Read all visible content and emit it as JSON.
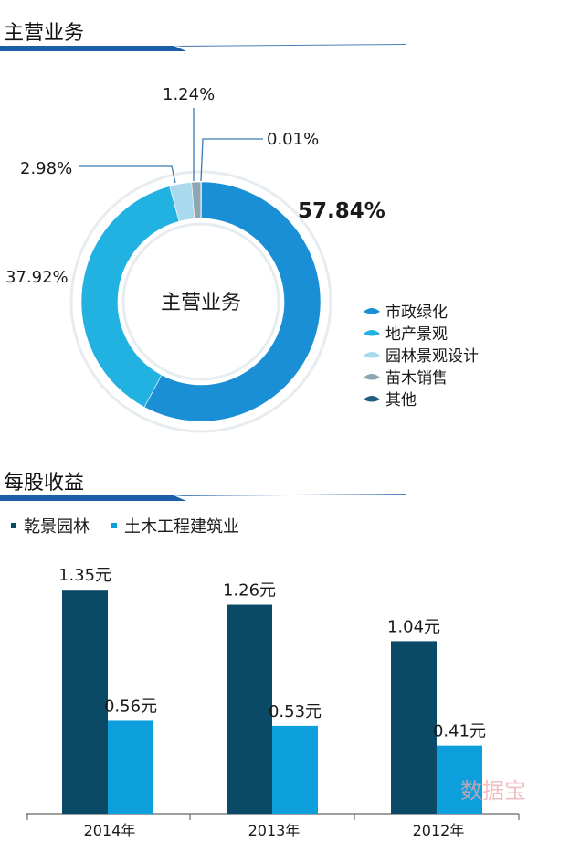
{
  "section1": {
    "title": "主营业务"
  },
  "section2": {
    "title": "每股收益"
  },
  "watermark": "数据宝",
  "chart_data": [
    {
      "type": "pie",
      "variant": "donut",
      "center_label": "主营业务",
      "slices": [
        {
          "label": "市政绿化",
          "value": 57.84,
          "value_label": "57.84%",
          "color": "#1b8fd6"
        },
        {
          "label": "地产景观",
          "value": 37.92,
          "value_label": "37.92%",
          "color": "#22b2e2"
        },
        {
          "label": "园林景观设计",
          "value": 2.98,
          "value_label": "2.98%",
          "color": "#a9d9ec"
        },
        {
          "label": "苗木销售",
          "value": 1.24,
          "value_label": "1.24%",
          "color": "#8ea6b2"
        },
        {
          "label": "其他",
          "value": 0.01,
          "value_label": "0.01%",
          "color": "#1e5f80"
        }
      ],
      "legend_position": "right"
    },
    {
      "type": "bar",
      "categories": [
        "2014年",
        "2013年",
        "2012年"
      ],
      "series": [
        {
          "name": "乾景园林",
          "values": [
            1.35,
            1.26,
            1.04
          ],
          "labels": [
            "1.35元",
            "1.26元",
            "1.04元"
          ],
          "color": "#0a4a66"
        },
        {
          "name": "土木工程建筑业",
          "values": [
            0.56,
            0.53,
            0.41
          ],
          "labels": [
            "0.56元",
            "0.53元",
            "0.41元"
          ],
          "color": "#0d9fdc"
        }
      ],
      "legend_position": "top-left",
      "ylim": [
        0,
        1.5
      ]
    }
  ]
}
